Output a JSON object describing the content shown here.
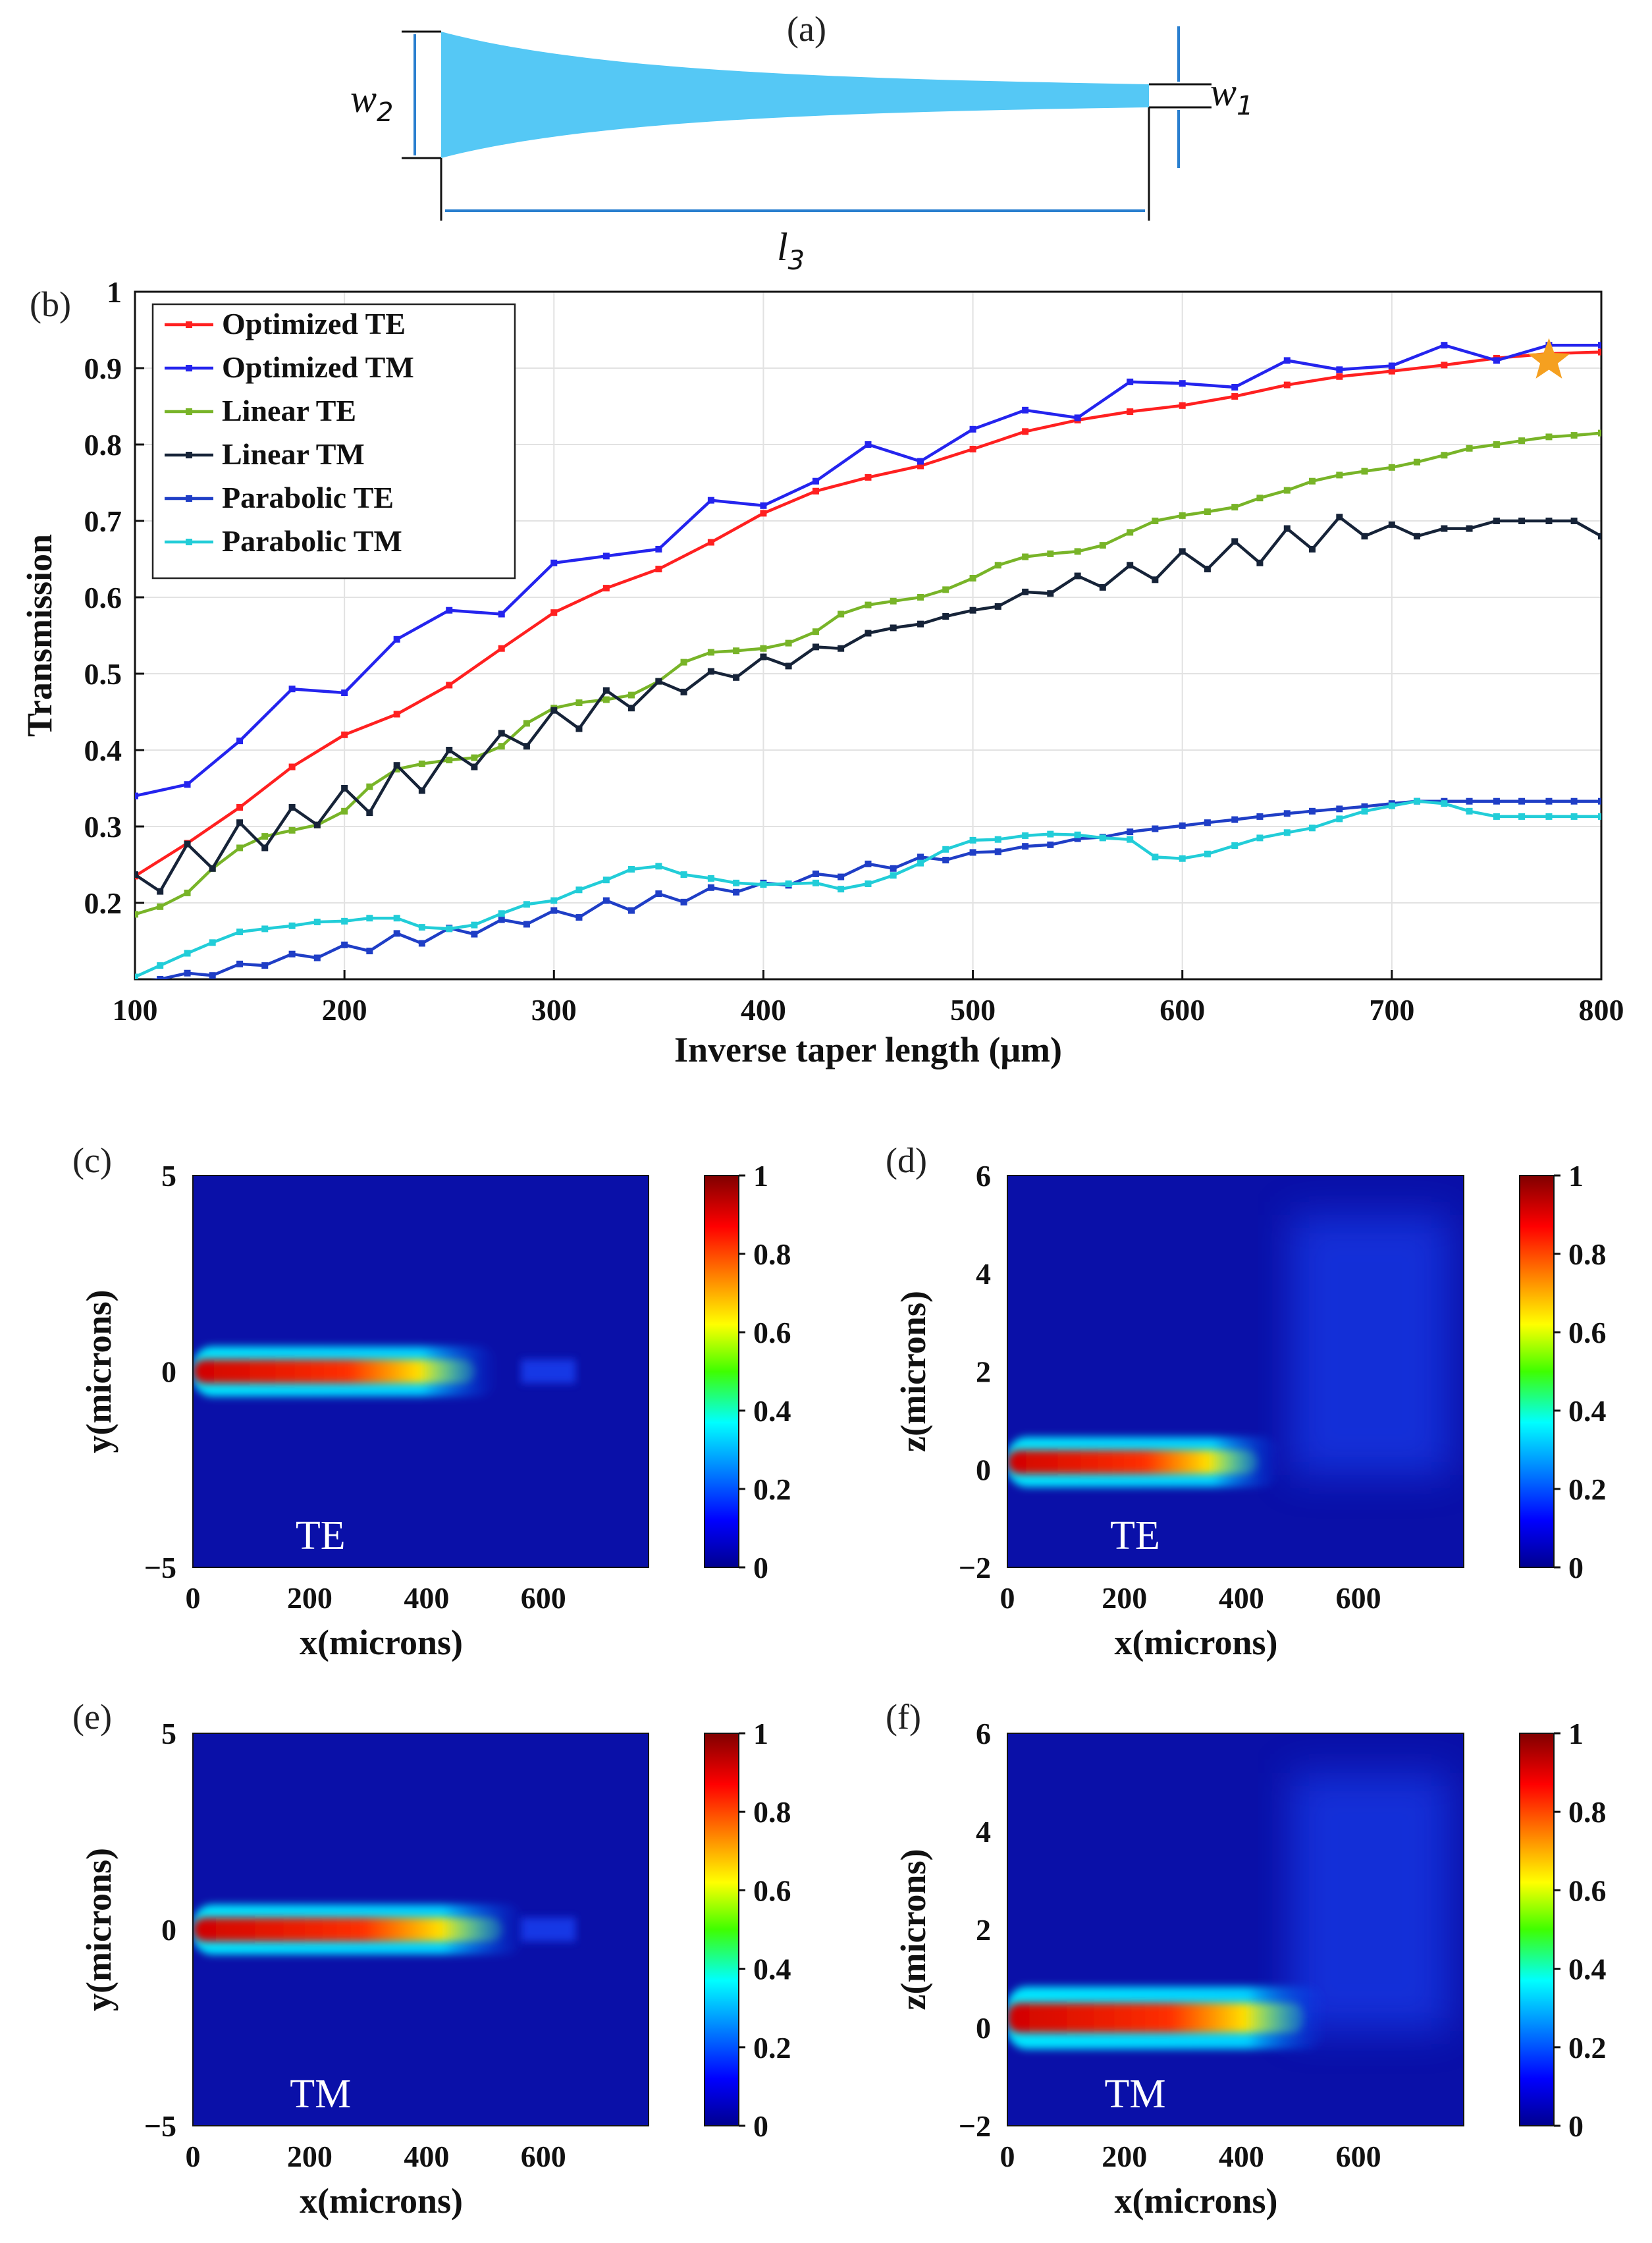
{
  "schematic": {
    "label": "(a)",
    "w2_main": "w",
    "w2_sub": "2",
    "w1_main": "w",
    "w1_sub": "1",
    "l3_main": "l",
    "l3_sub": "3",
    "taper_color": "#55c8f5",
    "dim_color": "#2a7fcf"
  },
  "chart_data": [
    {
      "type": "line",
      "panel": "(b)",
      "xlabel": "Inverse taper length (μm)",
      "ylabel": "Transmission",
      "xlim": [
        100,
        800
      ],
      "ylim": [
        0.1,
        1.0
      ],
      "xticks": [
        "100",
        "200",
        "300",
        "400",
        "500",
        "600",
        "700",
        "800"
      ],
      "yticks": [
        "1",
        "0.9",
        "0.8",
        "0.7",
        "0.6",
        "0.5",
        "0.4",
        "0.3",
        "0.2"
      ],
      "grid": true,
      "legend_position": "top-left",
      "marker": {
        "x": 775,
        "y": 0.91,
        "shape": "star",
        "color": "#f5a020"
      },
      "series": [
        {
          "name": "Optimized TE",
          "color": "#ff2020",
          "x": [
            100,
            125,
            150,
            175,
            200,
            225,
            250,
            275,
            300,
            325,
            350,
            375,
            400,
            425,
            450,
            475,
            500,
            525,
            550,
            575,
            600,
            625,
            650,
            675,
            700,
            725,
            750,
            775,
            800
          ],
          "y": [
            0.235,
            0.278,
            0.325,
            0.378,
            0.42,
            0.447,
            0.485,
            0.533,
            0.58,
            0.612,
            0.637,
            0.672,
            0.71,
            0.739,
            0.757,
            0.772,
            0.794,
            0.817,
            0.832,
            0.843,
            0.851,
            0.863,
            0.878,
            0.889,
            0.896,
            0.904,
            0.913,
            0.919,
            0.921
          ]
        },
        {
          "name": "Optimized TM",
          "color": "#2424ee",
          "x": [
            100,
            125,
            150,
            175,
            200,
            225,
            250,
            275,
            300,
            325,
            350,
            375,
            400,
            425,
            450,
            475,
            500,
            525,
            550,
            575,
            600,
            625,
            650,
            675,
            700,
            725,
            750,
            775,
            800
          ],
          "y": [
            0.34,
            0.355,
            0.412,
            0.48,
            0.475,
            0.545,
            0.583,
            0.578,
            0.645,
            0.654,
            0.663,
            0.727,
            0.72,
            0.752,
            0.8,
            0.778,
            0.82,
            0.845,
            0.835,
            0.882,
            0.88,
            0.875,
            0.91,
            0.898,
            0.903,
            0.93,
            0.91,
            0.93,
            0.93
          ]
        },
        {
          "name": "Linear TE",
          "color": "#78b428",
          "x": [
            100,
            112,
            125,
            137,
            150,
            162,
            175,
            187,
            200,
            212,
            225,
            237,
            250,
            262,
            275,
            287,
            300,
            312,
            325,
            337,
            350,
            362,
            375,
            387,
            400,
            412,
            425,
            437,
            450,
            462,
            475,
            487,
            500,
            512,
            525,
            537,
            550,
            562,
            575,
            587,
            600,
            612,
            625,
            637,
            650,
            662,
            675,
            687,
            700,
            712,
            725,
            737,
            750,
            762,
            775,
            787,
            800
          ],
          "y": [
            0.185,
            0.195,
            0.213,
            0.245,
            0.272,
            0.287,
            0.295,
            0.302,
            0.32,
            0.352,
            0.375,
            0.382,
            0.387,
            0.39,
            0.405,
            0.435,
            0.455,
            0.462,
            0.466,
            0.472,
            0.49,
            0.515,
            0.528,
            0.53,
            0.533,
            0.54,
            0.555,
            0.578,
            0.59,
            0.595,
            0.6,
            0.61,
            0.625,
            0.642,
            0.653,
            0.657,
            0.66,
            0.668,
            0.685,
            0.7,
            0.707,
            0.712,
            0.718,
            0.73,
            0.74,
            0.752,
            0.76,
            0.765,
            0.77,
            0.777,
            0.786,
            0.795,
            0.8,
            0.805,
            0.81,
            0.812,
            0.815
          ]
        },
        {
          "name": "Linear TM",
          "color": "#162338",
          "x": [
            100,
            112,
            125,
            137,
            150,
            162,
            175,
            187,
            200,
            212,
            225,
            237,
            250,
            262,
            275,
            287,
            300,
            312,
            325,
            337,
            350,
            362,
            375,
            387,
            400,
            412,
            425,
            437,
            450,
            462,
            475,
            487,
            500,
            512,
            525,
            537,
            550,
            562,
            575,
            587,
            600,
            612,
            625,
            637,
            650,
            662,
            675,
            687,
            700,
            712,
            725,
            737,
            750,
            762,
            775,
            787,
            800
          ],
          "y": [
            0.237,
            0.215,
            0.277,
            0.245,
            0.305,
            0.272,
            0.325,
            0.302,
            0.35,
            0.318,
            0.38,
            0.347,
            0.4,
            0.378,
            0.422,
            0.405,
            0.452,
            0.428,
            0.478,
            0.455,
            0.49,
            0.476,
            0.503,
            0.495,
            0.522,
            0.51,
            0.535,
            0.533,
            0.553,
            0.56,
            0.565,
            0.575,
            0.583,
            0.588,
            0.607,
            0.605,
            0.628,
            0.613,
            0.642,
            0.623,
            0.66,
            0.637,
            0.673,
            0.645,
            0.69,
            0.663,
            0.705,
            0.68,
            0.695,
            0.68,
            0.69,
            0.69,
            0.7,
            0.7,
            0.7,
            0.7,
            0.68
          ]
        },
        {
          "name": "Parabolic TE",
          "color": "#1f3ec6",
          "x": [
            100,
            112,
            125,
            137,
            150,
            162,
            175,
            187,
            200,
            212,
            225,
            237,
            250,
            262,
            275,
            287,
            300,
            312,
            325,
            337,
            350,
            362,
            375,
            387,
            400,
            412,
            425,
            437,
            450,
            462,
            475,
            487,
            500,
            512,
            525,
            537,
            550,
            562,
            575,
            587,
            600,
            612,
            625,
            637,
            650,
            662,
            675,
            687,
            700,
            712,
            725,
            737,
            750,
            762,
            775,
            787,
            800
          ],
          "y": [
            0.095,
            0.1,
            0.108,
            0.105,
            0.12,
            0.118,
            0.133,
            0.128,
            0.145,
            0.137,
            0.16,
            0.147,
            0.167,
            0.159,
            0.178,
            0.172,
            0.19,
            0.181,
            0.203,
            0.19,
            0.212,
            0.201,
            0.22,
            0.214,
            0.226,
            0.223,
            0.238,
            0.234,
            0.251,
            0.245,
            0.26,
            0.256,
            0.266,
            0.267,
            0.274,
            0.276,
            0.284,
            0.286,
            0.293,
            0.297,
            0.301,
            0.305,
            0.309,
            0.313,
            0.317,
            0.32,
            0.323,
            0.326,
            0.33,
            0.333,
            0.333,
            0.333,
            0.333,
            0.333,
            0.333,
            0.333,
            0.333
          ]
        },
        {
          "name": "Parabolic TM",
          "color": "#22cdd8",
          "x": [
            100,
            112,
            125,
            137,
            150,
            162,
            175,
            187,
            200,
            212,
            225,
            237,
            250,
            262,
            275,
            287,
            300,
            312,
            325,
            337,
            350,
            362,
            375,
            387,
            400,
            412,
            425,
            437,
            450,
            462,
            475,
            487,
            500,
            512,
            525,
            537,
            550,
            562,
            575,
            587,
            600,
            612,
            625,
            637,
            650,
            662,
            675,
            687,
            700,
            712,
            725,
            737,
            750,
            762,
            775,
            787,
            800
          ],
          "y": [
            0.103,
            0.118,
            0.134,
            0.148,
            0.162,
            0.166,
            0.17,
            0.175,
            0.176,
            0.18,
            0.18,
            0.168,
            0.166,
            0.171,
            0.186,
            0.198,
            0.203,
            0.217,
            0.23,
            0.244,
            0.248,
            0.237,
            0.232,
            0.226,
            0.224,
            0.225,
            0.226,
            0.218,
            0.225,
            0.236,
            0.252,
            0.27,
            0.282,
            0.283,
            0.288,
            0.29,
            0.289,
            0.285,
            0.283,
            0.26,
            0.258,
            0.264,
            0.275,
            0.285,
            0.292,
            0.298,
            0.31,
            0.32,
            0.327,
            0.333,
            0.33,
            0.32,
            0.313,
            0.313,
            0.313,
            0.313,
            0.313
          ]
        }
      ]
    },
    {
      "type": "heatmap",
      "panel": "(c)",
      "mode": "TE",
      "xlabel": "x(microns)",
      "ylabel": "y(microns)",
      "xticks": [
        "0",
        "200",
        "400",
        "600"
      ],
      "yticks": [
        "5",
        "0",
        "−5"
      ],
      "xlim": [
        0,
        780
      ],
      "ylim": [
        -5,
        5
      ],
      "colorbar_ticks": [
        "1",
        "0.8",
        "0.6",
        "0.4",
        "0.2",
        "0"
      ]
    },
    {
      "type": "heatmap",
      "panel": "(d)",
      "mode": "TE",
      "xlabel": "x(microns)",
      "ylabel": "z(microns)",
      "xticks": [
        "0",
        "200",
        "400",
        "600"
      ],
      "yticks": [
        "6",
        "4",
        "2",
        "0",
        "−2"
      ],
      "xlim": [
        0,
        780
      ],
      "ylim": [
        -2,
        6
      ],
      "colorbar_ticks": [
        "1",
        "0.8",
        "0.6",
        "0.4",
        "0.2",
        "0"
      ]
    },
    {
      "type": "heatmap",
      "panel": "(e)",
      "mode": "TM",
      "xlabel": "x(microns)",
      "ylabel": "y(microns)",
      "xticks": [
        "0",
        "200",
        "400",
        "600"
      ],
      "yticks": [
        "5",
        "0",
        "−5"
      ],
      "xlim": [
        0,
        780
      ],
      "ylim": [
        -5,
        5
      ],
      "colorbar_ticks": [
        "1",
        "0.8",
        "0.6",
        "0.4",
        "0.2",
        "0"
      ]
    },
    {
      "type": "heatmap",
      "panel": "(f)",
      "mode": "TM",
      "xlabel": "x(microns)",
      "ylabel": "z(microns)",
      "xticks": [
        "0",
        "200",
        "400",
        "600"
      ],
      "yticks": [
        "6",
        "4",
        "2",
        "0",
        "−2"
      ],
      "xlim": [
        0,
        780
      ],
      "ylim": [
        -2,
        6
      ],
      "colorbar_ticks": [
        "1",
        "0.8",
        "0.6",
        "0.4",
        "0.2",
        "0"
      ]
    }
  ]
}
